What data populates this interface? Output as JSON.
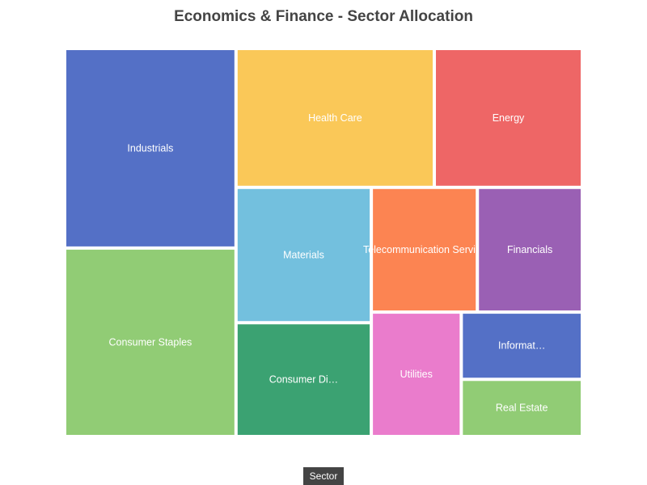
{
  "title": "Economics & Finance - Sector Allocation",
  "breadcrumb": "Sector",
  "chart_data": {
    "type": "treemap",
    "title": "Economics & Finance - Sector Allocation",
    "root": "Sector",
    "nodes": [
      {
        "name": "Industrials",
        "label": "Industrials",
        "value": 50400,
        "color": "#5470c6"
      },
      {
        "name": "Consumer Staples",
        "label": "Consumer Staples",
        "value": 47600,
        "color": "#91cc75"
      },
      {
        "name": "Health Care",
        "label": "Health Care",
        "value": 40600,
        "color": "#fac858"
      },
      {
        "name": "Energy",
        "label": "Energy",
        "value": 30300,
        "color": "#ee6666"
      },
      {
        "name": "Materials",
        "label": "Materials",
        "value": 27000,
        "color": "#73c0de"
      },
      {
        "name": "Consumer Discretionary",
        "label": "Consumer Di…",
        "value": 22700,
        "color": "#3ba272"
      },
      {
        "name": "Telecommunication Services",
        "label": "Telecommunication Servi…",
        "value": 19500,
        "color": "#fc8452"
      },
      {
        "name": "Financials",
        "label": "Financials",
        "value": 19300,
        "color": "#9a60b4"
      },
      {
        "name": "Utilities",
        "label": "Utilities",
        "value": 16500,
        "color": "#ea7ccc"
      },
      {
        "name": "Information Technology",
        "label": "Informat…",
        "value": 12000,
        "color": "#5470c6"
      },
      {
        "name": "Real Estate",
        "label": "Real Estate",
        "value": 10200,
        "color": "#91cc75"
      }
    ]
  }
}
